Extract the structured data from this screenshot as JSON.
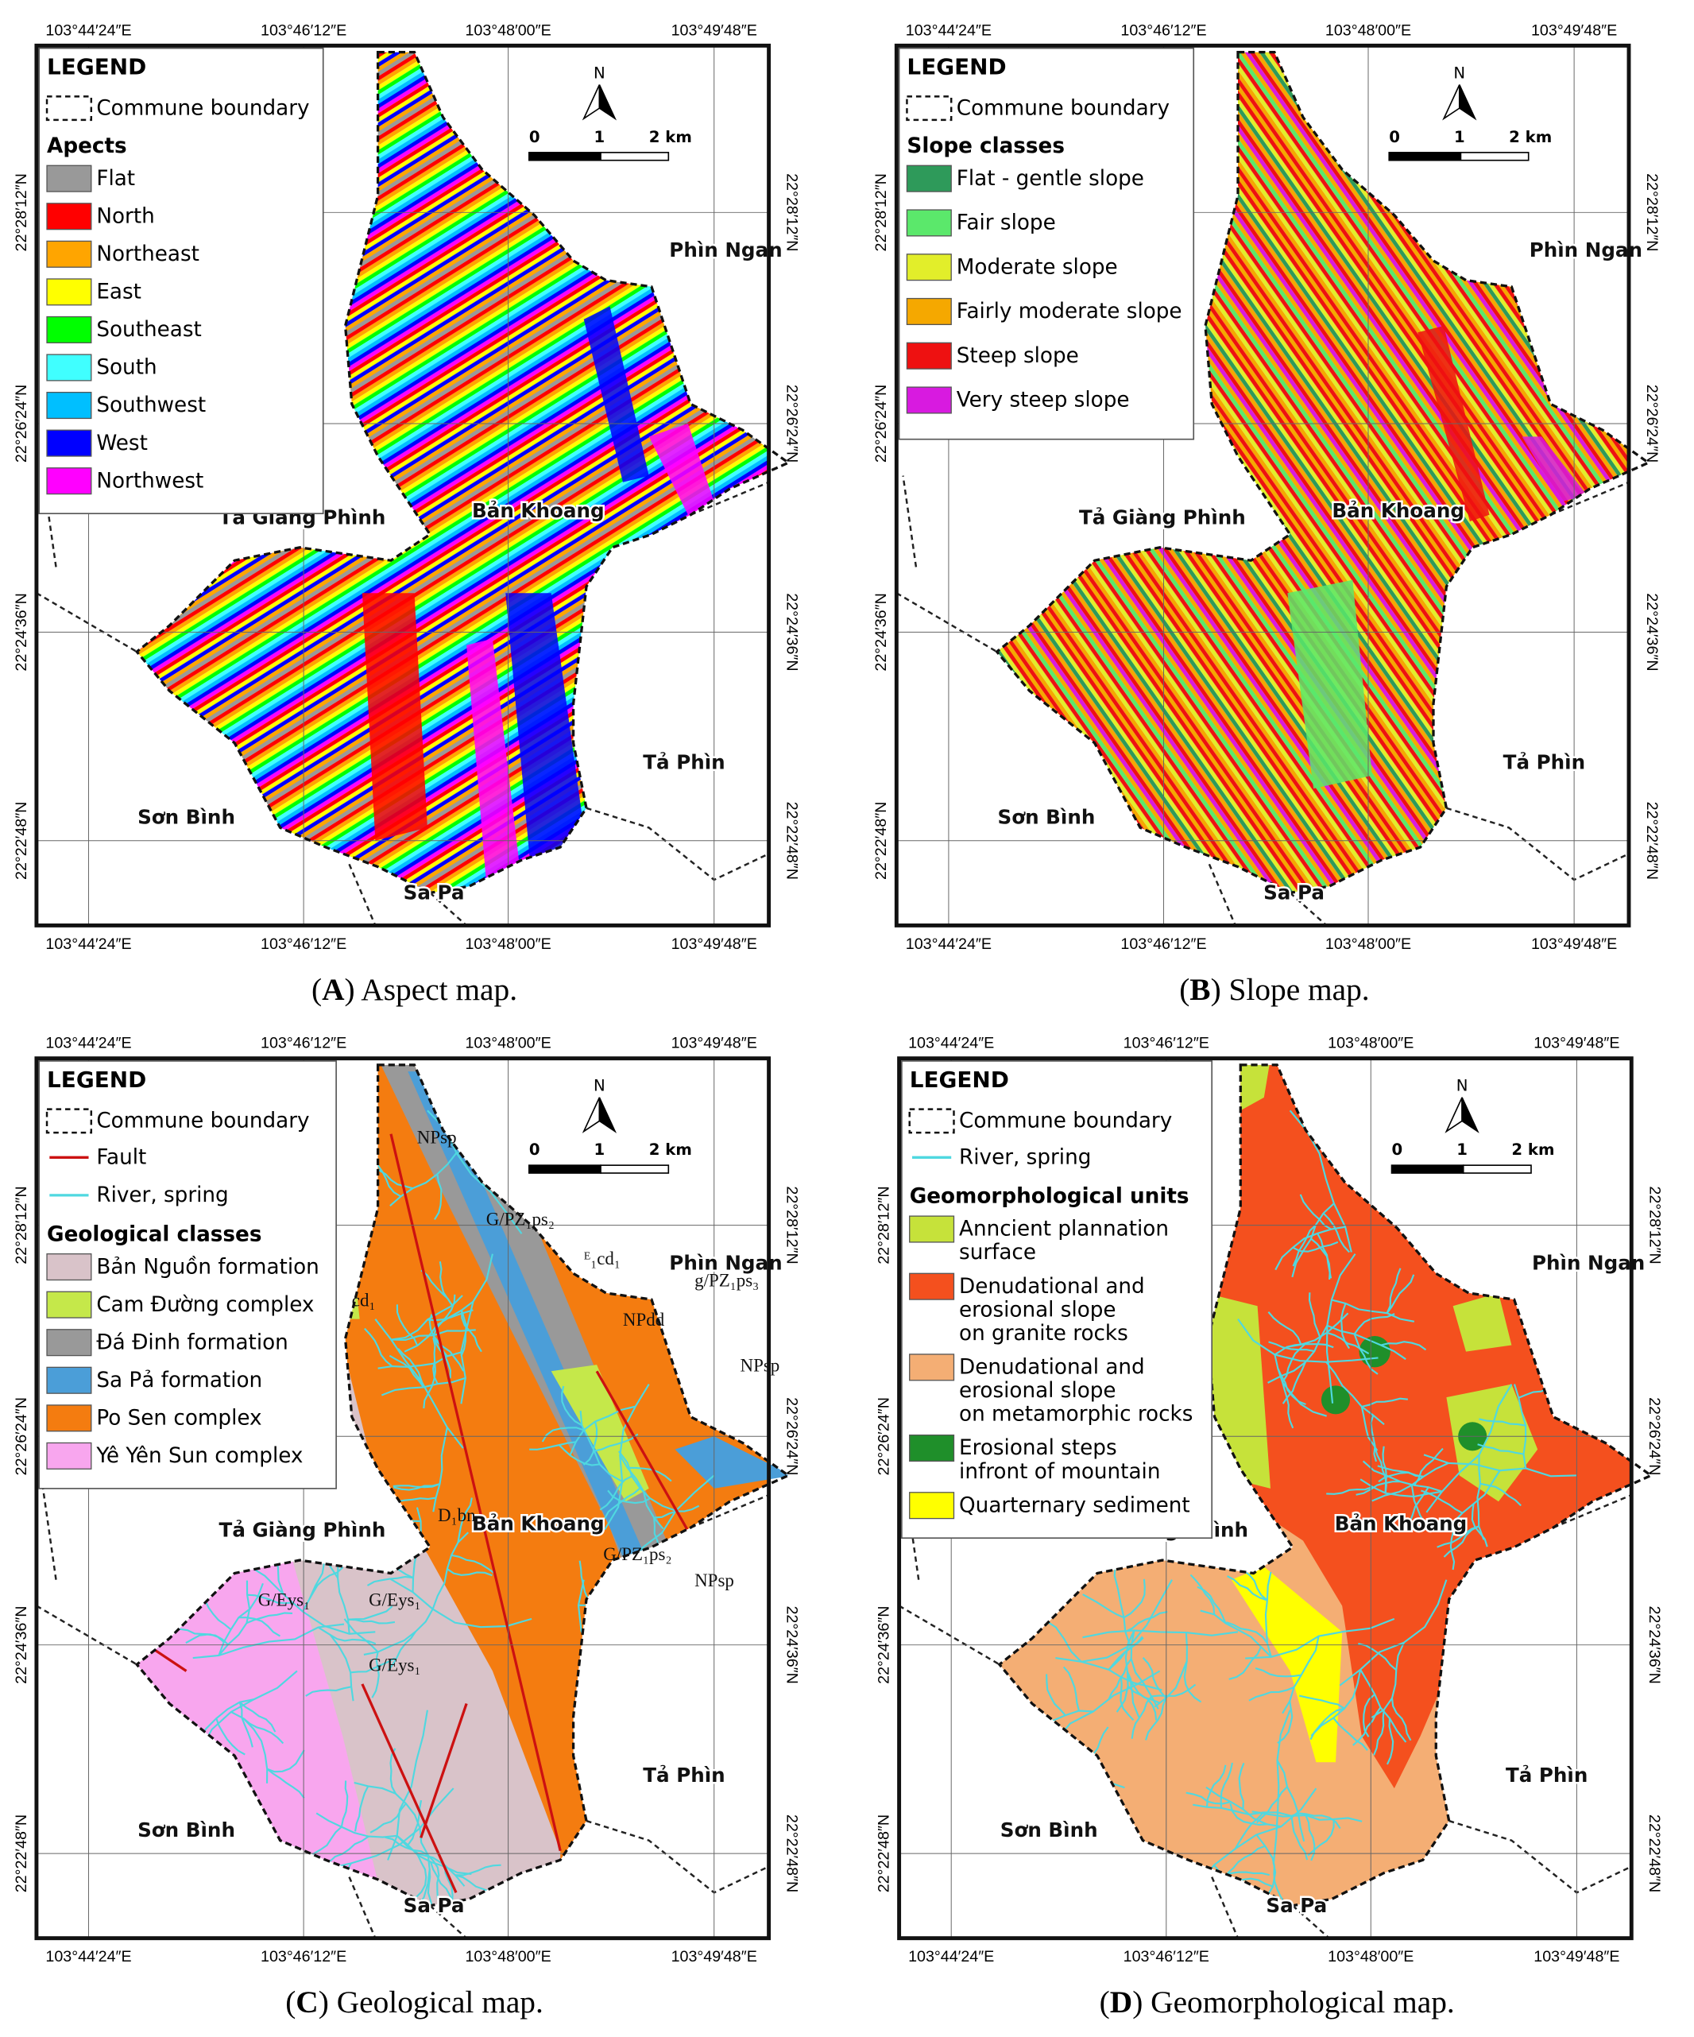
{
  "lon_labels": [
    "103°44′24″E",
    "103°46′12″E",
    "103°48′00″E",
    "103°49′48″E"
  ],
  "lat_labels": [
    "22°28′12″N",
    "22°26′24″N",
    "22°24′36″N",
    "22°22′48″N"
  ],
  "scale_labels": [
    "0",
    "1",
    "2 km"
  ],
  "north": "N",
  "place_names": [
    "Phìn Ngan",
    "Tả Giàng Phình",
    "Bản Khoang",
    "Tả Phìn",
    "Sơn Bình",
    "Sa Pa"
  ],
  "panels": [
    {
      "caption": [
        "(",
        "A",
        ") Aspect map."
      ],
      "legend": {
        "title": "LEGEND",
        "boundary": "Commune boundary",
        "line_items": [],
        "group_title": "Apects",
        "items": [
          {
            "label": "Flat",
            "color": "#999999"
          },
          {
            "label": "North",
            "color": "#ff0000"
          },
          {
            "label": "Northeast",
            "color": "#ffa500"
          },
          {
            "label": "East",
            "color": "#ffff00"
          },
          {
            "label": "Southeast",
            "color": "#00ff00"
          },
          {
            "label": "South",
            "color": "#40ffff"
          },
          {
            "label": "Southwest",
            "color": "#00bfff"
          },
          {
            "label": "West",
            "color": "#0000ff"
          },
          {
            "label": "Northwest",
            "color": "#ff00ff"
          }
        ]
      }
    },
    {
      "caption": [
        "(",
        "B",
        ") Slope map."
      ],
      "legend": {
        "title": "LEGEND",
        "boundary": "Commune boundary",
        "line_items": [],
        "group_title": "Slope classes",
        "items": [
          {
            "label": "Flat - gentle slope",
            "color": "#2e9a5a"
          },
          {
            "label": "Fair slope",
            "color": "#5be86b"
          },
          {
            "label": "Moderate slope",
            "color": "#e2ee2a"
          },
          {
            "label": "Fairly moderate slope",
            "color": "#f5a800"
          },
          {
            "label": "Steep slope",
            "color": "#ee1111"
          },
          {
            "label": "Very steep slope",
            "color": "#d81ae0"
          }
        ]
      }
    },
    {
      "caption": [
        "(",
        "C",
        ") Geological map."
      ],
      "legend": {
        "title": "LEGEND",
        "boundary": "Commune boundary",
        "line_items": [
          {
            "label": "Fault",
            "color": "#cc1111"
          },
          {
            "label": "River, spring",
            "color": "#4fd8e0"
          }
        ],
        "group_title": "Geological classes",
        "items": [
          {
            "label": "Bản Nguồn formation",
            "color": "#d9c3c9"
          },
          {
            "label": "Cam Đường complex",
            "color": "#c5e84a"
          },
          {
            "label": "Đá Đinh formation",
            "color": "#999999"
          },
          {
            "label": "Sa Pả formation",
            "color": "#4b9ed8"
          },
          {
            "label": "Po Sen complex",
            "color": "#f47c10"
          },
          {
            "label": "Yê Yên Sun complex",
            "color": "#f8a6ee"
          }
        ]
      },
      "annotations": [
        "NPsp",
        "cd₁",
        "G/PZ₁ps₂",
        "ᴱ₁cd₁",
        "g/PZ₁ps₃",
        "NPdd",
        "NPsp",
        "D₁bn",
        "G/Eys₁",
        "G/Eys₁",
        "G/Eys₁",
        "G/PZ₁ps₂",
        "NPsp"
      ]
    },
    {
      "caption": [
        "(",
        "D",
        ") Geomorphological map."
      ],
      "legend": {
        "title": "LEGEND",
        "boundary": "Commune boundary",
        "line_items": [
          {
            "label": "River, spring",
            "color": "#4fd8e0"
          }
        ],
        "group_title": "Geomorphological units",
        "items": [
          {
            "label": [
              "Anncient plannation",
              "surface"
            ],
            "color": "#c6e23a"
          },
          {
            "label": [
              "Denudational and",
              "erosional slope",
              "on granite rocks"
            ],
            "color": "#f4501e"
          },
          {
            "label": [
              "Denudational and",
              "erosional slope",
              "on metamorphic rocks"
            ],
            "color": "#f4ae74"
          },
          {
            "label": [
              "Erosional steps",
              "infront of mountain"
            ],
            "color": "#1f8f2a"
          },
          {
            "label": "Quarternary sediment",
            "color": "#ffff00"
          }
        ]
      }
    }
  ]
}
